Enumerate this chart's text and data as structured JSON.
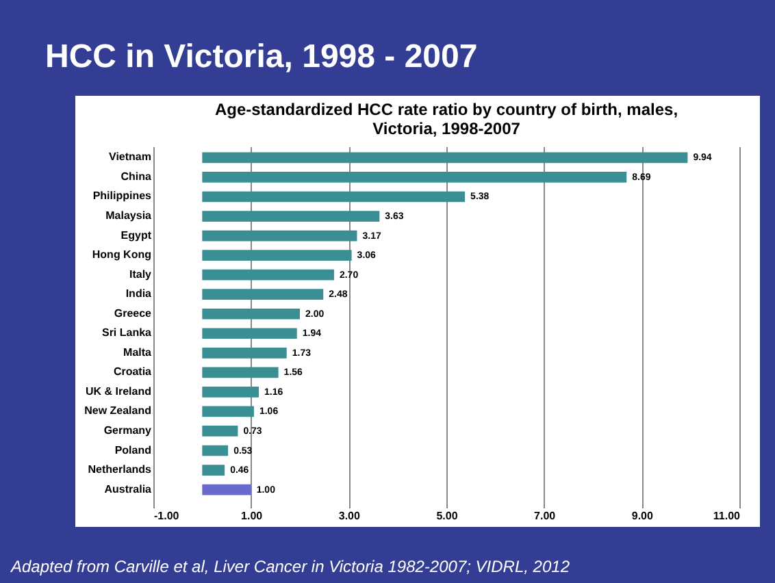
{
  "chart_data": {
    "type": "bar",
    "orientation": "horizontal",
    "title": "HCC in Victoria, 1998 - 2007",
    "subtitle": "Age-standardized HCC rate ratio by country of birth, males, Victoria, 1998-2007",
    "categories": [
      "Vietnam",
      "China",
      "Philippines",
      "Malaysia",
      "Egypt",
      "Hong Kong",
      "Italy",
      "India",
      "Greece",
      "Sri Lanka",
      "Malta",
      "Croatia",
      "UK & Ireland",
      "New Zealand",
      "Germany",
      "Poland",
      "Netherlands",
      "Australia"
    ],
    "values": [
      9.94,
      8.69,
      5.38,
      3.63,
      3.17,
      3.06,
      2.7,
      2.48,
      2.0,
      1.94,
      1.73,
      1.56,
      1.16,
      1.06,
      0.73,
      0.53,
      0.46,
      1.0
    ],
    "value_labels": [
      "9.94",
      "8.69",
      "5.38",
      "3.63",
      "3.17",
      "3.06",
      "2.70",
      "2.48",
      "2.00",
      "1.94",
      "1.73",
      "1.56",
      "1.16",
      "1.06",
      "0.73",
      "0.53",
      "0.46",
      "1.00"
    ],
    "colors": [
      "#3a8f94",
      "#3a8f94",
      "#3a8f94",
      "#3a8f94",
      "#3a8f94",
      "#3a8f94",
      "#3a8f94",
      "#3a8f94",
      "#3a8f94",
      "#3a8f94",
      "#3a8f94",
      "#3a8f94",
      "#3a8f94",
      "#3a8f94",
      "#3a8f94",
      "#3a8f94",
      "#3a8f94",
      "#6a6acc"
    ],
    "xlim": [
      -1,
      11
    ],
    "xticks": [
      {
        "value": -1,
        "label": "-1.00"
      },
      {
        "value": 1,
        "label": "1.00"
      },
      {
        "value": 3,
        "label": "3.00"
      },
      {
        "value": 5,
        "label": "5.00"
      },
      {
        "value": 7,
        "label": "7.00"
      },
      {
        "value": 9,
        "label": "9.00"
      },
      {
        "value": 11,
        "label": "11.00"
      }
    ],
    "grid": "x",
    "annotations": [
      "Adapted from Carville et al, Liver Cancer in Victoria 1982-2007; VIDRL, 2012"
    ]
  }
}
